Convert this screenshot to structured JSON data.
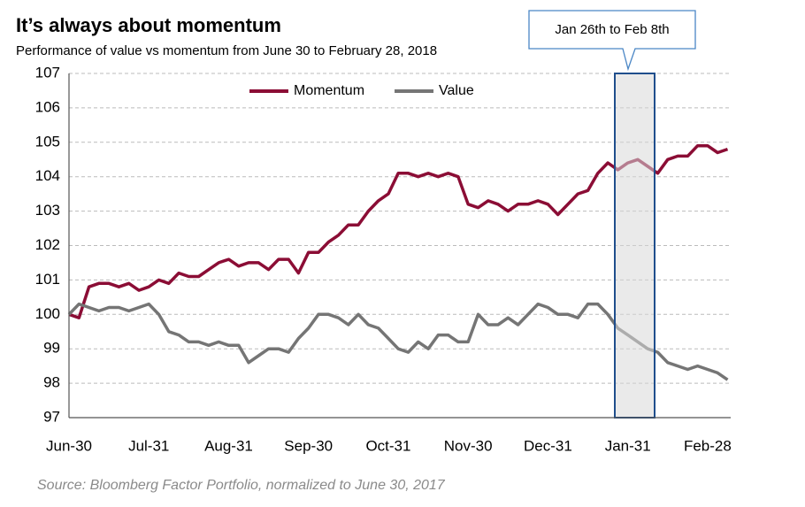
{
  "chart_data": {
    "type": "line",
    "title": "It’s always about momentum",
    "subtitle": "Performance of value vs momentum from June 30 to February 28, 2018",
    "source": "Source: Bloomberg Factor Portfolio, normalized to June 30, 2017",
    "annotation": "Jan 26th to Feb 8th",
    "categories": [
      "Jun-30",
      null,
      null,
      null,
      null,
      null,
      null,
      null,
      "Jul-31",
      null,
      null,
      null,
      null,
      null,
      null,
      null,
      "Aug-31",
      null,
      null,
      null,
      null,
      null,
      null,
      null,
      "Sep-30",
      null,
      null,
      null,
      null,
      null,
      null,
      null,
      "Oct-31",
      null,
      null,
      null,
      null,
      null,
      null,
      null,
      "Nov-30",
      null,
      null,
      null,
      null,
      null,
      null,
      null,
      "Dec-31",
      null,
      null,
      null,
      null,
      null,
      null,
      null,
      "Jan-31",
      null,
      null,
      null,
      null,
      null,
      null,
      null,
      "Feb-28",
      null,
      null
    ],
    "series": [
      {
        "name": "Momentum",
        "color": "#8b0d35",
        "values": [
          100.0,
          99.9,
          100.8,
          100.9,
          100.9,
          100.8,
          100.9,
          100.7,
          100.8,
          101.0,
          100.9,
          101.2,
          101.1,
          101.1,
          101.3,
          101.5,
          101.6,
          101.4,
          101.5,
          101.5,
          101.3,
          101.6,
          101.6,
          101.2,
          101.8,
          101.8,
          102.1,
          102.3,
          102.6,
          102.6,
          103.0,
          103.3,
          103.5,
          104.1,
          104.1,
          104.0,
          104.1,
          104.0,
          104.1,
          104.0,
          103.2,
          103.1,
          103.3,
          103.2,
          103.0,
          103.2,
          103.2,
          103.3,
          103.2,
          102.9,
          103.2,
          103.5,
          103.6,
          104.1,
          104.4,
          104.2,
          104.4,
          104.5,
          104.3,
          104.1,
          104.5,
          104.6,
          104.6,
          104.9,
          104.9,
          104.7,
          104.8
        ]
      },
      {
        "name": "Value",
        "color": "#757575",
        "values": [
          100.0,
          100.3,
          100.2,
          100.1,
          100.2,
          100.2,
          100.1,
          100.2,
          100.3,
          100.0,
          99.5,
          99.4,
          99.2,
          99.2,
          99.1,
          99.2,
          99.1,
          99.1,
          98.6,
          98.8,
          99.0,
          99.0,
          98.9,
          99.3,
          99.6,
          100.0,
          100.0,
          99.9,
          99.7,
          100.0,
          99.7,
          99.6,
          99.3,
          99.0,
          98.9,
          99.2,
          99.0,
          99.4,
          99.4,
          99.2,
          99.2,
          100.0,
          99.7,
          99.7,
          99.9,
          99.7,
          100.0,
          100.3,
          100.2,
          100.0,
          100.0,
          99.9,
          100.3,
          100.3,
          100.0,
          99.6,
          99.4,
          99.2,
          99.0,
          98.9,
          98.6,
          98.5,
          98.4,
          98.5,
          98.4,
          98.3,
          98.1
        ]
      }
    ],
    "ylim": [
      97,
      107
    ],
    "yticks": [
      97,
      98,
      99,
      100,
      101,
      102,
      103,
      104,
      105,
      106,
      107
    ],
    "grid": true
  }
}
